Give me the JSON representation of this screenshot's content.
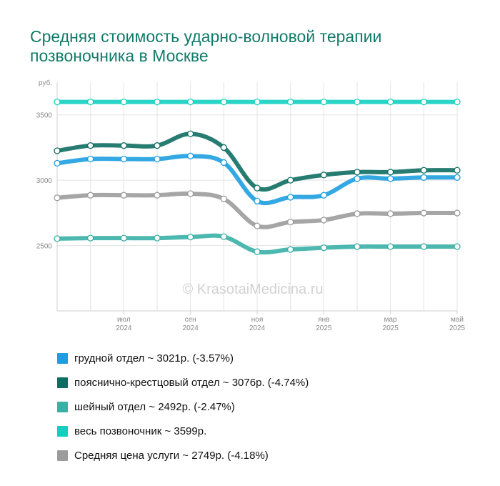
{
  "page": {
    "title_line1": "Средняя стоимость ударно-волновой терапии",
    "title_line2": "позвоночника в Москве",
    "watermark": "© KrasotaiMedicina.ru"
  },
  "chart_data": {
    "type": "line",
    "title": "Средняя стоимость ударно-волновой терапии позвоночника в Москве",
    "ylabel": "руб.",
    "ylim": [
      2000,
      3750
    ],
    "yticks": [
      2500,
      3000,
      3500
    ],
    "x": [
      "2024-05",
      "2024-06",
      "2024-07",
      "2024-08",
      "2024-09",
      "2024-10",
      "2024-11",
      "2024-12",
      "2025-01",
      "2025-02",
      "2025-03",
      "2025-04",
      "2025-05"
    ],
    "xtick_labels": [
      {
        "x": "2024-07",
        "month": "июл",
        "year": "2024"
      },
      {
        "x": "2024-09",
        "month": "сен",
        "year": "2024"
      },
      {
        "x": "2024-11",
        "month": "ноя",
        "year": "2024"
      },
      {
        "x": "2025-01",
        "month": "янв",
        "year": "2025"
      },
      {
        "x": "2025-03",
        "month": "мар",
        "year": "2025"
      },
      {
        "x": "2025-05",
        "month": "май",
        "year": "2025"
      }
    ],
    "grid": true,
    "legend_position": "bottom",
    "series": [
      {
        "name": "весь позвоночник",
        "color": "#13cfc0",
        "values": [
          3599,
          3599,
          3599,
          3599,
          3599,
          3599,
          3599,
          3599,
          3599,
          3599,
          3599,
          3599,
          3599
        ]
      },
      {
        "name": "пояснично-крестцовый отдел",
        "color": "#0f6e63",
        "values": [
          3225,
          3265,
          3265,
          3265,
          3355,
          3250,
          2940,
          3000,
          3040,
          3062,
          3062,
          3076,
          3076
        ]
      },
      {
        "name": "грудной отдел",
        "color": "#1e9ee0",
        "values": [
          3130,
          3162,
          3162,
          3162,
          3185,
          3135,
          2840,
          2870,
          2885,
          3012,
          3012,
          3021,
          3021
        ]
      },
      {
        "name": "Средняя цена услуги",
        "color": "#9c9c9c",
        "values": [
          2865,
          2885,
          2885,
          2885,
          2897,
          2857,
          2650,
          2680,
          2695,
          2744,
          2744,
          2749,
          2749
        ]
      },
      {
        "name": "шейный отдел",
        "color": "#3ab0a6",
        "values": [
          2553,
          2557,
          2557,
          2557,
          2565,
          2568,
          2453,
          2470,
          2483,
          2492,
          2492,
          2492,
          2492
        ]
      }
    ]
  },
  "legend": [
    {
      "color": "#1e9ee0",
      "label": "грудной отдел ~ 3021р. (-3.57%)"
    },
    {
      "color": "#0f6e63",
      "label": "пояснично-крестцовый отдел ~ 3076р. (-4.74%)"
    },
    {
      "color": "#3ab0a6",
      "label": "шейный отдел ~ 2492р. (-2.47%)"
    },
    {
      "color": "#13cfc0",
      "label": "весь позвоночник ~ 3599р."
    },
    {
      "color": "#9c9c9c",
      "label": "Средняя цена услуги ~ 2749р. (-4.18%)"
    }
  ]
}
